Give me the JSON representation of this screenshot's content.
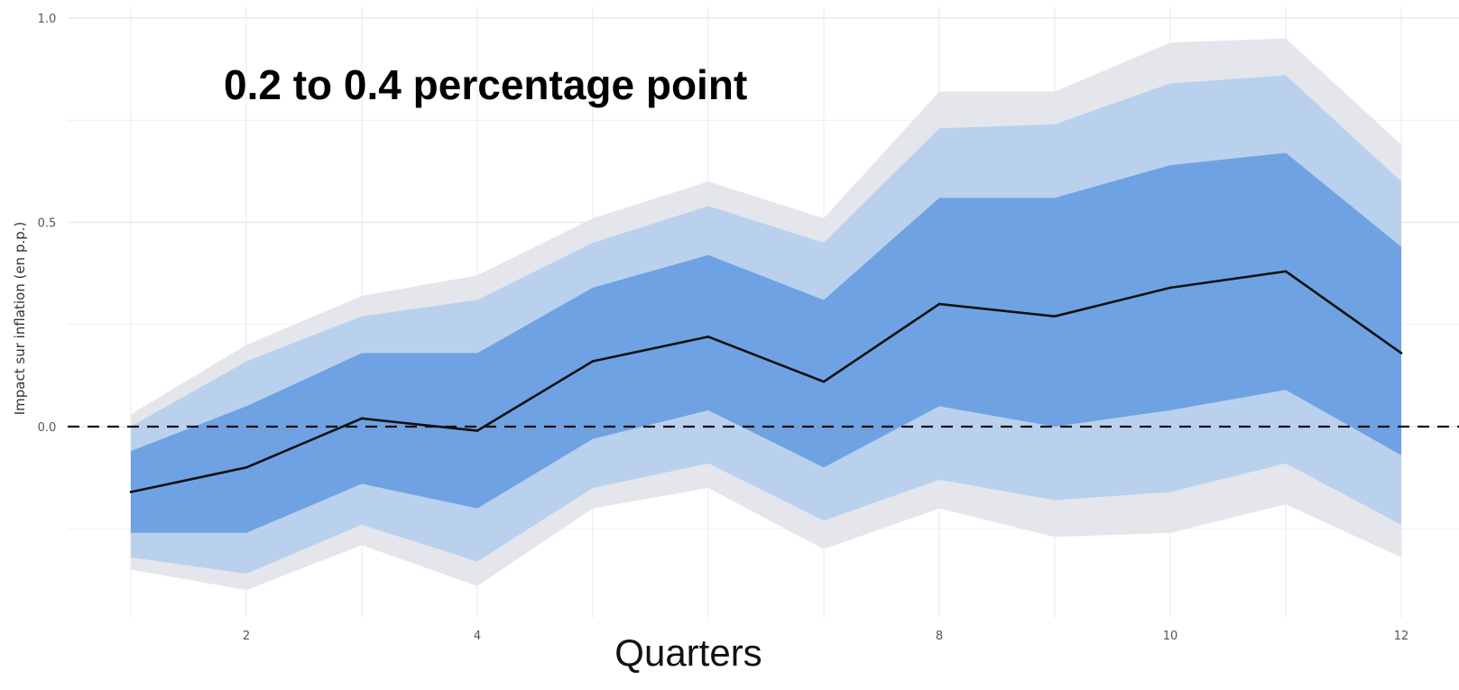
{
  "chart_data": {
    "type": "area",
    "annotation": "0.2 to 0.4 percentage point",
    "xlabel": "Quarters",
    "ylabel": "Impact sur inflation (en p.p.)",
    "x": [
      1,
      2,
      3,
      4,
      5,
      6,
      7,
      8,
      9,
      10,
      11,
      12
    ],
    "x_ticks": [
      2,
      4,
      8,
      10,
      12
    ],
    "x_tick_labels": [
      "2",
      "4",
      "8",
      "10",
      "12"
    ],
    "y_ticks": [
      0.0,
      0.5,
      1.0
    ],
    "y_tick_labels": [
      "0.0",
      "0.5",
      "1.0"
    ],
    "xlim": [
      0.5,
      12.5
    ],
    "ylim": [
      -0.48,
      1.0
    ],
    "grid": true,
    "reference_line": {
      "y": 0.0,
      "style": "dashed"
    },
    "series": [
      {
        "values": [
          -0.16,
          -0.1,
          0.02,
          -0.01,
          0.16,
          0.22,
          0.11,
          0.3,
          0.27,
          0.34,
          0.38,
          0.18
        ]
      }
    ],
    "bands": [
      {
        "lower": [
          -0.35,
          -0.4,
          -0.29,
          -0.39,
          -0.2,
          -0.15,
          -0.3,
          -0.2,
          -0.27,
          -0.26,
          -0.19,
          -0.32
        ],
        "upper": [
          0.03,
          0.2,
          0.32,
          0.37,
          0.51,
          0.6,
          0.51,
          0.82,
          0.82,
          0.94,
          0.95,
          0.69
        ]
      },
      {
        "lower": [
          -0.32,
          -0.36,
          -0.24,
          -0.33,
          -0.15,
          -0.09,
          -0.23,
          -0.13,
          -0.18,
          -0.16,
          -0.09,
          -0.24
        ],
        "upper": [
          0.0,
          0.16,
          0.27,
          0.31,
          0.45,
          0.54,
          0.45,
          0.73,
          0.74,
          0.84,
          0.86,
          0.6
        ]
      },
      {
        "lower": [
          -0.26,
          -0.26,
          -0.14,
          -0.2,
          -0.03,
          0.04,
          -0.1,
          0.05,
          0.0,
          0.04,
          0.09,
          -0.07
        ],
        "upper": [
          -0.06,
          0.05,
          0.18,
          0.18,
          0.34,
          0.42,
          0.31,
          0.56,
          0.56,
          0.64,
          0.67,
          0.44
        ]
      }
    ],
    "colors": {
      "outer_band": "#e4e6ec",
      "middle_band": "#b9d1ec",
      "inner_band": "#6fa2e3",
      "line": "#111111",
      "grid": "#e9e9e9",
      "reference_line": "#111111"
    }
  }
}
